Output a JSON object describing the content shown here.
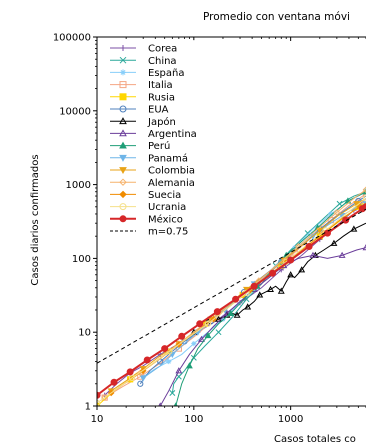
{
  "chart_data": {
    "type": "line",
    "title": "Promedio con ventana móvi",
    "xlabel": "Casos totales co",
    "ylabel": "Casos diarios confirmados",
    "xscale": "log",
    "yscale": "log",
    "xlim": [
      10,
      6000
    ],
    "ylim": [
      1,
      100000
    ],
    "x_ticks": [
      {
        "value": 10,
        "label": "10"
      },
      {
        "value": 100,
        "label": "100"
      },
      {
        "value": 1000,
        "label": "1000"
      }
    ],
    "y_ticks": [
      {
        "value": 1,
        "label": "1"
      },
      {
        "value": 10,
        "label": "10"
      },
      {
        "value": 100,
        "label": "100"
      },
      {
        "value": 1000,
        "label": "1000"
      },
      {
        "value": 10000,
        "label": "10000"
      },
      {
        "value": 100000,
        "label": "100000"
      }
    ],
    "grid": false,
    "legend_position": "top-left",
    "series": [
      {
        "name": "Corea",
        "color": "#7b4fa6",
        "marker": "plus",
        "x": [
          12,
          16,
          22,
          30,
          45,
          70,
          110,
          180,
          300,
          500,
          800,
          1300,
          2000,
          3200,
          4500,
          6000
        ],
        "y": [
          1.4,
          2.0,
          2.8,
          3.5,
          5,
          7,
          10,
          15,
          25,
          40,
          70,
          110,
          180,
          300,
          450,
          650
        ]
      },
      {
        "name": "China",
        "color": "#2aa89a",
        "marker": "x",
        "x": [
          60,
          62,
          70,
          80,
          100,
          130,
          180,
          250,
          350,
          500,
          700,
          1000,
          1500,
          2200,
          3200,
          4500,
          6000
        ],
        "y": [
          1.5,
          2.0,
          2.5,
          3,
          4.5,
          6.5,
          10,
          16,
          28,
          45,
          80,
          130,
          220,
          350,
          550,
          700,
          800
        ]
      },
      {
        "name": "España",
        "color": "#87cefa",
        "marker": "star",
        "x": [
          30,
          40,
          55,
          75,
          100,
          140,
          200,
          300,
          450,
          700,
          1100,
          1700,
          2600,
          4000,
          6000
        ],
        "y": [
          2.5,
          3.2,
          4,
          5,
          7,
          10,
          15,
          25,
          45,
          80,
          140,
          250,
          400,
          600,
          800
        ]
      },
      {
        "name": "Italia",
        "color": "#f4a582",
        "marker": "square",
        "x": [
          12,
          18,
          28,
          45,
          70,
          110,
          170,
          280,
          450,
          700,
          1100,
          1700,
          2600,
          4000,
          6000
        ],
        "y": [
          1.3,
          1.8,
          2.5,
          3.8,
          6,
          9.5,
          16,
          27,
          45,
          75,
          120,
          200,
          330,
          520,
          750
        ]
      },
      {
        "name": "Rusia",
        "color": "#ffd700",
        "marker": "square",
        "x": [
          10,
          15,
          22,
          35,
          55,
          85,
          130,
          200,
          320,
          500,
          800,
          1300,
          2000,
          3200,
          5000,
          6000
        ],
        "y": [
          1.0,
          1.6,
          2.3,
          3.5,
          5.5,
          8.5,
          13,
          20,
          32,
          50,
          80,
          130,
          200,
          320,
          500,
          600
        ]
      },
      {
        "name": "EUA",
        "color": "#4f81bd",
        "marker": "circle",
        "x": [
          28,
          35,
          45,
          60,
          80,
          110,
          150,
          220,
          330,
          500,
          800,
          1300,
          2000,
          3200,
          5000,
          6000
        ],
        "y": [
          2.0,
          3.0,
          4.0,
          5.5,
          7.5,
          10,
          14,
          22,
          35,
          55,
          90,
          150,
          250,
          400,
          600,
          700
        ]
      },
      {
        "name": "Japón",
        "color": "#000000",
        "marker": "triangle-up",
        "x": [
          100,
          120,
          140,
          160,
          180,
          200,
          220,
          250,
          280,
          320,
          360,
          420,
          480,
          550,
          620,
          700,
          800,
          900,
          1000,
          1100,
          1300,
          1500,
          1800,
          2200,
          2800,
          3500,
          4500,
          6000
        ],
        "y": [
          10,
          12,
          14,
          15,
          15,
          16,
          17,
          18,
          17,
          20,
          22,
          26,
          32,
          35,
          38,
          42,
          36,
          48,
          60,
          55,
          70,
          90,
          110,
          130,
          160,
          200,
          250,
          300
        ]
      },
      {
        "name": "Argentina",
        "color": "#6a3d9a",
        "marker": "triangle-up",
        "x": [
          45,
          55,
          70,
          90,
          120,
          160,
          220,
          300,
          420,
          600,
          850,
          1200,
          1700,
          2400,
          3400,
          4800,
          6000
        ],
        "y": [
          1.0,
          1.6,
          3,
          5,
          8,
          12,
          18,
          26,
          38,
          55,
          80,
          100,
          110,
          100,
          110,
          130,
          140
        ]
      },
      {
        "name": "Perú",
        "color": "#1f9e77",
        "marker": "triangle-up",
        "x": [
          65,
          75,
          90,
          110,
          140,
          180,
          240,
          330,
          450,
          650,
          900,
          1300,
          1900,
          2700,
          3900,
          5500,
          6000
        ],
        "y": [
          1.0,
          2.0,
          3.5,
          6,
          9,
          13,
          18,
          28,
          42,
          70,
          110,
          170,
          260,
          400,
          600,
          750,
          800
        ]
      },
      {
        "name": "Panamá",
        "color": "#6fb5e8",
        "marker": "triangle-down",
        "x": [
          30,
          45,
          60,
          80,
          110,
          150,
          210,
          300,
          420,
          600,
          850,
          1200,
          1700,
          2400,
          3400,
          4800,
          6000
        ],
        "y": [
          2.4,
          3.5,
          5,
          7,
          10,
          14,
          20,
          30,
          45,
          65,
          95,
          140,
          200,
          280,
          380,
          500,
          550
        ]
      },
      {
        "name": "Colombia",
        "color": "#e8a317",
        "marker": "triangle-down",
        "x": [
          14,
          20,
          30,
          45,
          70,
          100,
          150,
          230,
          350,
          550,
          850,
          1300,
          2000,
          3100,
          4800,
          6000
        ],
        "y": [
          1.6,
          2.2,
          3.2,
          4.8,
          7,
          10,
          15,
          24,
          38,
          60,
          95,
          150,
          240,
          380,
          550,
          650
        ]
      },
      {
        "name": "Alemania",
        "color": "#f6b26b",
        "marker": "diamond",
        "x": [
          12,
          18,
          28,
          45,
          70,
          110,
          180,
          290,
          470,
          750,
          1200,
          1900,
          3000,
          4700,
          6000
        ],
        "y": [
          1.3,
          1.9,
          2.8,
          4.5,
          7,
          11,
          18,
          30,
          50,
          85,
          145,
          250,
          420,
          680,
          850
        ]
      },
      {
        "name": "Suecia",
        "color": "#f08c00",
        "marker": "diamond",
        "x": [
          14,
          20,
          30,
          46,
          70,
          105,
          160,
          250,
          380,
          580,
          900,
          1400,
          2200,
          3400,
          5200,
          6000
        ],
        "y": [
          1.5,
          2.1,
          3.0,
          4.5,
          6.8,
          10,
          15,
          24,
          37,
          58,
          90,
          140,
          220,
          350,
          500,
          560
        ]
      },
      {
        "name": "Ucrania",
        "color": "#f5e08a",
        "marker": "circle",
        "x": [
          10,
          15,
          23,
          36,
          56,
          88,
          140,
          220,
          350,
          560,
          900,
          1450,
          2300,
          3700,
          6000
        ],
        "y": [
          1.1,
          1.6,
          2.4,
          3.6,
          5.5,
          8.5,
          13,
          21,
          34,
          55,
          90,
          150,
          240,
          400,
          650
        ]
      },
      {
        "name": "México",
        "color": "#d62728",
        "marker": "circle",
        "x": [
          10,
          15,
          22,
          33,
          50,
          75,
          115,
          175,
          270,
          420,
          650,
          1000,
          1550,
          2400,
          3700,
          5500,
          6000
        ],
        "y": [
          1.4,
          2.1,
          2.9,
          4.2,
          6.0,
          8.8,
          13,
          19,
          28,
          42,
          63,
          95,
          145,
          220,
          330,
          470,
          500
        ]
      },
      {
        "name": "m=0.75",
        "color": "#000000",
        "marker": "none",
        "dashed": true,
        "x": [
          10,
          6000
        ],
        "y": [
          3.8,
          464
        ]
      }
    ]
  }
}
